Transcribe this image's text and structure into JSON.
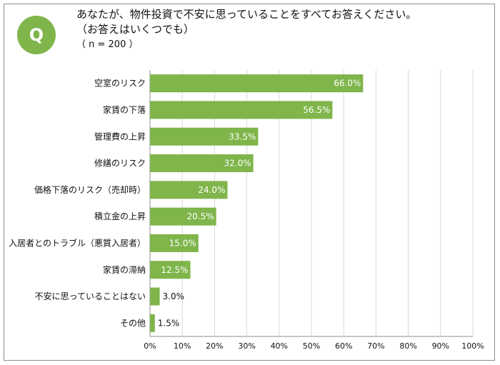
{
  "header": {
    "badge": "Q",
    "question": "あなたが、物件投資で不安に思っていることをすべてお答えください。",
    "note": "（お答えはいくつでも）",
    "sample": "（ n = 200 ）"
  },
  "colors": {
    "bar": "#7fb54a",
    "badge": "#7fb54a",
    "grid": "#d9d9d9",
    "axis": "#8c8c8c"
  },
  "chart_data": {
    "type": "bar",
    "orientation": "horizontal",
    "title": "",
    "xlabel": "",
    "ylabel": "",
    "xlim": [
      0,
      100
    ],
    "grid": true,
    "legend": "none",
    "categories": [
      "空室のリスク",
      "家賃の下落",
      "管理費の上昇",
      "修繕のリスク",
      "価格下落のリスク（売却時）",
      "積立金の上昇",
      "入居者とのトラブル（悪質入居者）",
      "家賃の滞納",
      "不安に思っていることはない",
      "その他"
    ],
    "values": [
      66.0,
      56.5,
      33.5,
      32.0,
      24.0,
      20.5,
      15.0,
      12.5,
      3.0,
      1.5
    ],
    "value_labels": [
      "66.0%",
      "56.5%",
      "33.5%",
      "32.0%",
      "24.0%",
      "20.5%",
      "15.0%",
      "12.5%",
      "3.0%",
      "1.5%"
    ],
    "ticks": [
      0,
      10,
      20,
      30,
      40,
      50,
      60,
      70,
      80,
      90,
      100
    ],
    "tick_labels": [
      "0%",
      "10%",
      "20%",
      "30%",
      "40%",
      "50%",
      "60%",
      "70%",
      "80%",
      "90%",
      "100%"
    ]
  }
}
